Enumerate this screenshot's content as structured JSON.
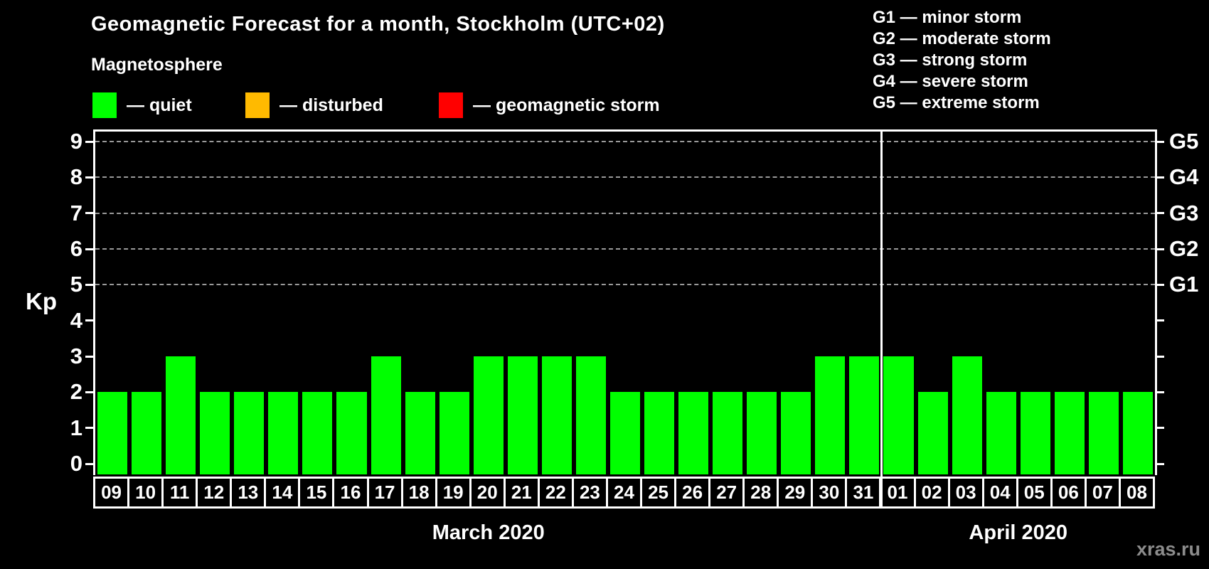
{
  "title": "Geomagnetic Forecast for a month, Stockholm (UTC+02)",
  "legend": {
    "heading": "Magnetosphere",
    "items": [
      {
        "name": "quiet",
        "label": "— quiet",
        "color": "#00ff00"
      },
      {
        "name": "disturbed",
        "label": "— disturbed",
        "color": "#ffba00"
      },
      {
        "name": "storm",
        "label": "— geomagnetic storm",
        "color": "#ff0000"
      }
    ]
  },
  "storm_scale_legend": [
    {
      "label": "G1 — minor storm"
    },
    {
      "label": "G2 — moderate storm"
    },
    {
      "label": "G3 — strong storm"
    },
    {
      "label": "G4 — severe storm"
    },
    {
      "label": "G5 — extreme storm"
    }
  ],
  "watermark": "xras.ru",
  "chart_data": {
    "type": "bar",
    "ylabel": "Kp",
    "ylim": [
      0,
      9
    ],
    "yticks": [
      0,
      1,
      2,
      3,
      4,
      5,
      6,
      7,
      8,
      9
    ],
    "gridlines_at": [
      5,
      6,
      7,
      8,
      9
    ],
    "grid": "dashed, G-levels only",
    "right_axis_labels": [
      {
        "label": "G1",
        "kp": 5
      },
      {
        "label": "G2",
        "kp": 6
      },
      {
        "label": "G3",
        "kp": 7
      },
      {
        "label": "G4",
        "kp": 8
      },
      {
        "label": "G5",
        "kp": 9
      }
    ],
    "bar_color": "#00ff00",
    "categories": [
      "09",
      "10",
      "11",
      "12",
      "13",
      "14",
      "15",
      "16",
      "17",
      "18",
      "19",
      "20",
      "21",
      "22",
      "23",
      "24",
      "25",
      "26",
      "27",
      "28",
      "29",
      "30",
      "31",
      "01",
      "02",
      "03",
      "04",
      "05",
      "06",
      "07",
      "08"
    ],
    "values": [
      2,
      2,
      3,
      2,
      2,
      2,
      2,
      2,
      3,
      2,
      2,
      3,
      3,
      3,
      3,
      2,
      2,
      2,
      2,
      2,
      2,
      3,
      3,
      3,
      2,
      3,
      2,
      2,
      2,
      2,
      2
    ],
    "months": [
      {
        "label": "March 2020",
        "days": 23
      },
      {
        "label": "April 2020",
        "days": 8
      }
    ]
  }
}
